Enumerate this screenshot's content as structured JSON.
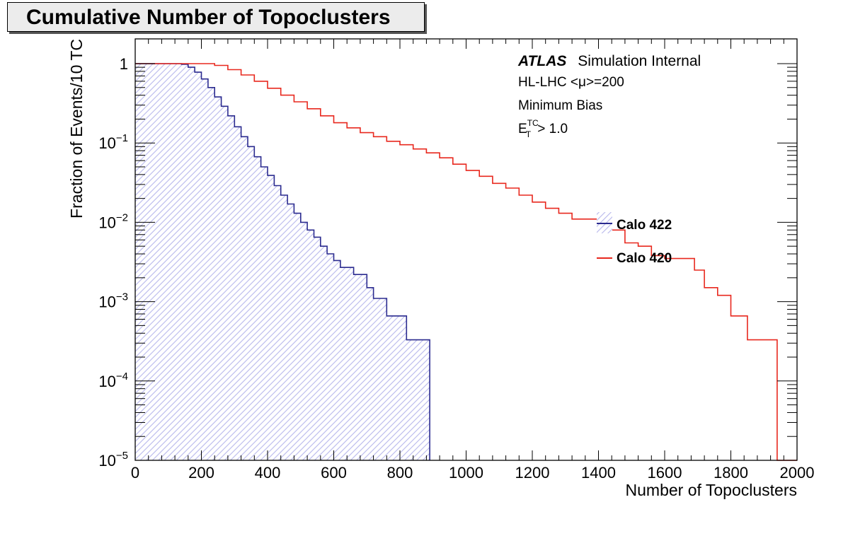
{
  "chart_data": {
    "type": "line",
    "title": "Cumulative Number of Topoclusters",
    "xlabel": "Number of Topoclusters",
    "ylabel": "Fraction of Events/10 TC",
    "xlim": [
      0,
      2000
    ],
    "ylim": [
      1e-05,
      1.5
    ],
    "yscale": "log",
    "xticks": [
      "0",
      "200",
      "400",
      "600",
      "800",
      "1000",
      "1200",
      "1400",
      "1600",
      "1800",
      "2000"
    ],
    "yticks": [
      {
        "value": 1,
        "base": "1",
        "exp": ""
      },
      {
        "value": 0.1,
        "base": "10",
        "exp": "−1"
      },
      {
        "value": 0.01,
        "base": "10",
        "exp": "−2"
      },
      {
        "value": 0.001,
        "base": "10",
        "exp": "−3"
      },
      {
        "value": 0.0001,
        "base": "10",
        "exp": "−4"
      },
      {
        "value": 1e-05,
        "base": "10",
        "exp": "−5"
      }
    ],
    "annotations": {
      "atlas": "ATLAS",
      "atlas_suffix": "Simulation Internal",
      "line2_pre": "HL-LHC <",
      "line2_mu": "μ",
      "line2_post": ">=200",
      "line3": "Minimum Bias",
      "line4_e": "E",
      "line4_sub": "T",
      "line4_sup": "TC",
      "line4_post": " > 1.0"
    },
    "legend_position": "right",
    "series": [
      {
        "name": "Calo 422",
        "color": "#2b2b8f",
        "fill": "#c8c8f0",
        "points": [
          [
            0,
            1
          ],
          [
            120,
            1
          ],
          [
            140,
            0.98
          ],
          [
            160,
            0.9
          ],
          [
            180,
            0.78
          ],
          [
            200,
            0.64
          ],
          [
            220,
            0.5
          ],
          [
            240,
            0.38
          ],
          [
            260,
            0.29
          ],
          [
            280,
            0.22
          ],
          [
            300,
            0.16
          ],
          [
            320,
            0.12
          ],
          [
            340,
            0.09
          ],
          [
            360,
            0.067
          ],
          [
            380,
            0.05
          ],
          [
            400,
            0.039
          ],
          [
            420,
            0.029
          ],
          [
            440,
            0.022
          ],
          [
            460,
            0.017
          ],
          [
            480,
            0.013
          ],
          [
            500,
            0.01
          ],
          [
            520,
            0.008
          ],
          [
            540,
            0.0065
          ],
          [
            560,
            0.005
          ],
          [
            580,
            0.004
          ],
          [
            600,
            0.0033
          ],
          [
            620,
            0.0027
          ],
          [
            660,
            0.0022
          ],
          [
            700,
            0.0015
          ],
          [
            720,
            0.0011
          ],
          [
            760,
            0.00066
          ],
          [
            820,
            0.00033
          ],
          [
            890,
            1e-05
          ]
        ]
      },
      {
        "name": "Calo 420",
        "color": "#e8281e",
        "fill": "",
        "points": [
          [
            0,
            1
          ],
          [
            200,
            1
          ],
          [
            240,
            0.95
          ],
          [
            280,
            0.84
          ],
          [
            320,
            0.72
          ],
          [
            360,
            0.6
          ],
          [
            400,
            0.49
          ],
          [
            440,
            0.4
          ],
          [
            480,
            0.33
          ],
          [
            520,
            0.27
          ],
          [
            560,
            0.22
          ],
          [
            600,
            0.18
          ],
          [
            640,
            0.155
          ],
          [
            680,
            0.135
          ],
          [
            720,
            0.12
          ],
          [
            760,
            0.105
          ],
          [
            800,
            0.095
          ],
          [
            840,
            0.084
          ],
          [
            880,
            0.075
          ],
          [
            920,
            0.065
          ],
          [
            960,
            0.054
          ],
          [
            1000,
            0.045
          ],
          [
            1040,
            0.038
          ],
          [
            1080,
            0.031
          ],
          [
            1120,
            0.027
          ],
          [
            1160,
            0.022
          ],
          [
            1200,
            0.018
          ],
          [
            1240,
            0.015
          ],
          [
            1280,
            0.013
          ],
          [
            1320,
            0.011
          ],
          [
            1360,
            0.011
          ],
          [
            1400,
            0.009
          ],
          [
            1440,
            0.008
          ],
          [
            1480,
            0.0055
          ],
          [
            1520,
            0.005
          ],
          [
            1560,
            0.0038
          ],
          [
            1600,
            0.0035
          ],
          [
            1660,
            0.0035
          ],
          [
            1690,
            0.0025
          ],
          [
            1720,
            0.0015
          ],
          [
            1760,
            0.0012
          ],
          [
            1800,
            0.00066
          ],
          [
            1850,
            0.00033
          ],
          [
            1930,
            0.00033
          ],
          [
            1940,
            1e-05
          ],
          [
            2000,
            1e-05
          ]
        ]
      }
    ]
  }
}
